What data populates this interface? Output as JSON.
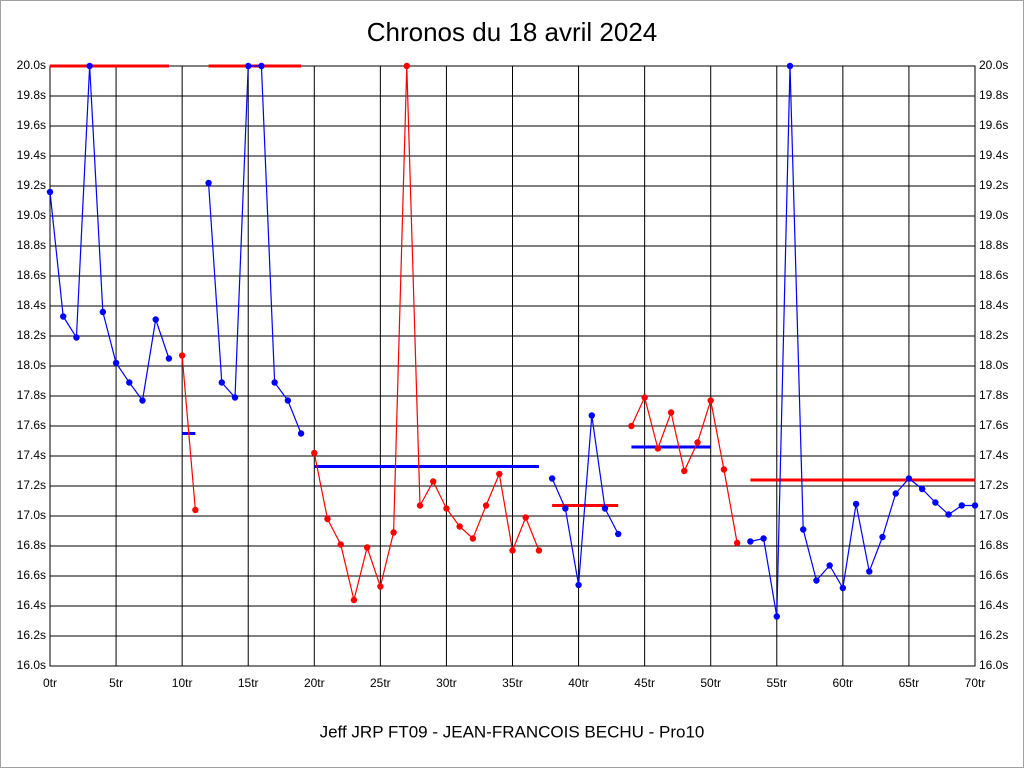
{
  "chart_data": {
    "type": "line",
    "title": "Chronos du 18 avril 2024",
    "caption": "Jeff JRP FT09 - JEAN-FRANCOIS BECHU - Pro10",
    "xlim": [
      0,
      70
    ],
    "ylim": [
      16.0,
      20.0
    ],
    "grid": true,
    "xticks": [
      {
        "value": 0,
        "label": "0tr"
      },
      {
        "value": 5,
        "label": "5tr"
      },
      {
        "value": 10,
        "label": "10tr"
      },
      {
        "value": 15,
        "label": "15tr"
      },
      {
        "value": 20,
        "label": "20tr"
      },
      {
        "value": 25,
        "label": "25tr"
      },
      {
        "value": 30,
        "label": "30tr"
      },
      {
        "value": 35,
        "label": "35tr"
      },
      {
        "value": 40,
        "label": "40tr"
      },
      {
        "value": 45,
        "label": "45tr"
      },
      {
        "value": 50,
        "label": "50tr"
      },
      {
        "value": 55,
        "label": "55tr"
      },
      {
        "value": 60,
        "label": "60tr"
      },
      {
        "value": 65,
        "label": "65tr"
      },
      {
        "value": 70,
        "label": "70tr"
      }
    ],
    "yticks": [
      {
        "value": 16.0,
        "label": "16.0s"
      },
      {
        "value": 16.2,
        "label": "16.2s"
      },
      {
        "value": 16.4,
        "label": "16.4s"
      },
      {
        "value": 16.6,
        "label": "16.6s"
      },
      {
        "value": 16.8,
        "label": "16.8s"
      },
      {
        "value": 17.0,
        "label": "17.0s"
      },
      {
        "value": 17.2,
        "label": "17.2s"
      },
      {
        "value": 17.4,
        "label": "17.4s"
      },
      {
        "value": 17.6,
        "label": "17.6s"
      },
      {
        "value": 17.8,
        "label": "17.8s"
      },
      {
        "value": 18.0,
        "label": "18.0s"
      },
      {
        "value": 18.2,
        "label": "18.2s"
      },
      {
        "value": 18.4,
        "label": "18.4s"
      },
      {
        "value": 18.6,
        "label": "18.6s"
      },
      {
        "value": 18.8,
        "label": "18.8s"
      },
      {
        "value": 19.0,
        "label": "19.0s"
      },
      {
        "value": 19.2,
        "label": "19.2s"
      },
      {
        "value": 19.4,
        "label": "19.4s"
      },
      {
        "value": 19.6,
        "label": "19.6s"
      },
      {
        "value": 19.8,
        "label": "19.8s"
      },
      {
        "value": 20.0,
        "label": "20.0s"
      }
    ],
    "series": [
      {
        "color": "#0000ff",
        "x": [
          0,
          1,
          2,
          3,
          4,
          5,
          6,
          7,
          8,
          9
        ],
        "values": [
          19.16,
          18.33,
          18.19,
          20.0,
          18.36,
          18.02,
          17.89,
          17.77,
          18.31,
          18.05
        ]
      },
      {
        "color": "#ff0000",
        "x": [
          10,
          11
        ],
        "values": [
          18.07,
          17.04
        ]
      },
      {
        "color": "#0000ff",
        "x": [
          12,
          13,
          14,
          15,
          16,
          17,
          18,
          19
        ],
        "values": [
          19.22,
          17.89,
          17.79,
          20.0,
          20.0,
          17.89,
          17.77,
          17.55
        ]
      },
      {
        "color": "#ff0000",
        "x": [
          20,
          21,
          22,
          23,
          24,
          25,
          26,
          27,
          28,
          29,
          30,
          31,
          32,
          33,
          34,
          35,
          36,
          37
        ],
        "values": [
          17.42,
          16.98,
          16.81,
          16.44,
          16.79,
          16.53,
          16.89,
          20.0,
          17.07,
          17.23,
          17.05,
          16.93,
          16.85,
          17.07,
          17.28,
          16.77,
          16.99,
          16.77
        ]
      },
      {
        "color": "#0000ff",
        "x": [
          38,
          39,
          40,
          41,
          42,
          43
        ],
        "values": [
          17.25,
          17.05,
          16.54,
          17.67,
          17.05,
          16.88
        ]
      },
      {
        "color": "#ff0000",
        "x": [
          44,
          45,
          46,
          47,
          48,
          49,
          50,
          51,
          52
        ],
        "values": [
          17.6,
          17.79,
          17.45,
          17.69,
          17.3,
          17.49,
          17.77,
          17.31,
          16.82
        ]
      },
      {
        "color": "#0000ff",
        "x": [
          53,
          54,
          55,
          56,
          57,
          58,
          59,
          60,
          61,
          62,
          63,
          64,
          65,
          66,
          67,
          68,
          69,
          70
        ],
        "values": [
          16.83,
          16.85,
          16.33,
          20.0,
          16.91,
          16.57,
          16.67,
          16.52,
          17.08,
          16.63,
          16.86,
          17.15,
          17.25,
          17.18,
          17.09,
          17.01,
          17.07,
          17.07
        ]
      }
    ],
    "averages": [
      {
        "color": "#ff0000",
        "x": [
          0,
          9
        ],
        "value": 20.0
      },
      {
        "color": "#0000ff",
        "x": [
          10,
          11
        ],
        "value": 17.55
      },
      {
        "color": "#ff0000",
        "x": [
          12,
          19
        ],
        "value": 20.0
      },
      {
        "color": "#0000ff",
        "x": [
          20,
          37
        ],
        "value": 17.33
      },
      {
        "color": "#ff0000",
        "x": [
          38,
          43
        ],
        "value": 17.07
      },
      {
        "color": "#0000ff",
        "x": [
          44,
          50
        ],
        "value": 17.46
      },
      {
        "color": "#ff0000",
        "x": [
          53,
          70
        ],
        "value": 17.24
      }
    ]
  }
}
